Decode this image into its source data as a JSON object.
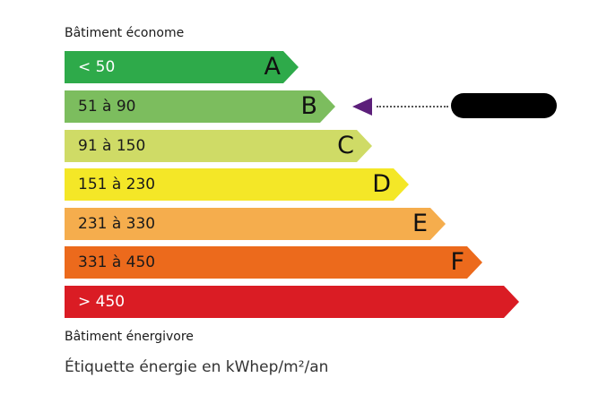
{
  "top_label": "Bâtiment économe",
  "bottom_label": "Bâtiment énergivore",
  "caption": "Étiquette énergie en kWhep/m²/an",
  "classes": [
    {
      "range": "< 50",
      "letter": "A",
      "color": "#2eaa4a",
      "text_color": "#ffffff"
    },
    {
      "range": "51 à 90",
      "letter": "B",
      "color": "#7cbd5e",
      "text_color": "#1a1a1a"
    },
    {
      "range": "91 à 150",
      "letter": "C",
      "color": "#cfdb66",
      "text_color": "#1a1a1a"
    },
    {
      "range": "151 à 230",
      "letter": "D",
      "color": "#f4e727",
      "text_color": "#1a1a1a"
    },
    {
      "range": "231 à 330",
      "letter": "E",
      "color": "#f5ad4d",
      "text_color": "#1a1a1a"
    },
    {
      "range": "331 à 450",
      "letter": "F",
      "color": "#ec6a1c",
      "text_color": "#1a1a1a"
    },
    {
      "range": "> 450",
      "letter": "",
      "color": "#da1c24",
      "text_color": "#ffffff"
    }
  ],
  "current_class": "B",
  "marker_color": "#5c1f7a"
}
